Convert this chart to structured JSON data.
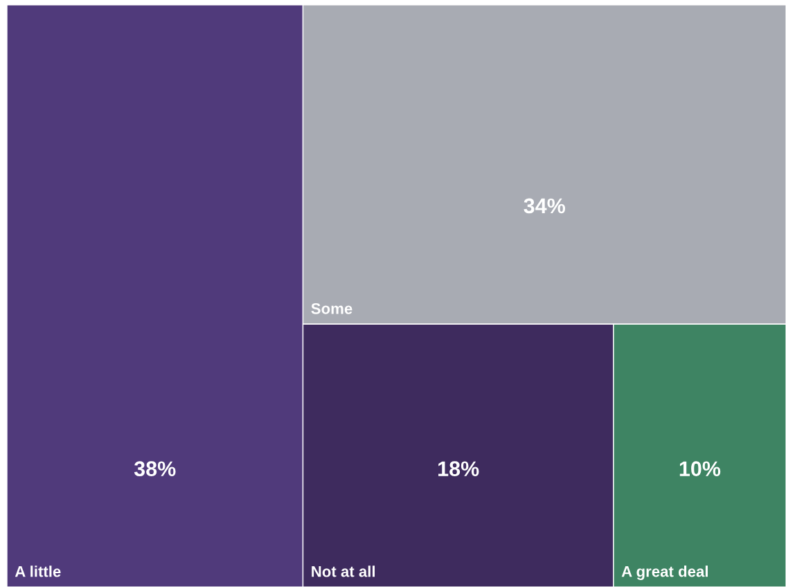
{
  "chart_data": {
    "type": "other",
    "categories": [
      "A little",
      "Some",
      "Not at all",
      "A great deal"
    ],
    "values": [
      38,
      34,
      18,
      10
    ],
    "value_labels": [
      "38%",
      "34%",
      "18%",
      "10%"
    ],
    "colors": [
      "#503a7b",
      "#a8abb3",
      "#3e2b5e",
      "#3e8463"
    ]
  }
}
